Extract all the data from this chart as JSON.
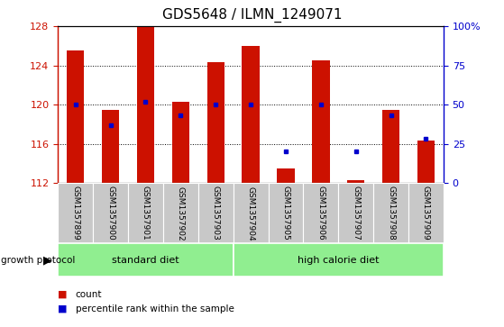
{
  "title": "GDS5648 / ILMN_1249071",
  "samples": [
    "GSM1357899",
    "GSM1357900",
    "GSM1357901",
    "GSM1357902",
    "GSM1357903",
    "GSM1357904",
    "GSM1357905",
    "GSM1357906",
    "GSM1357907",
    "GSM1357908",
    "GSM1357909"
  ],
  "counts": [
    125.5,
    119.5,
    128.0,
    120.3,
    124.3,
    126.0,
    113.5,
    124.5,
    112.3,
    119.5,
    116.3
  ],
  "percentiles": [
    50,
    37,
    52,
    43,
    50,
    50,
    20,
    50,
    20,
    43,
    28
  ],
  "ymin": 112,
  "ymax": 128,
  "yticks": [
    112,
    116,
    120,
    124,
    128
  ],
  "right_yticks": [
    0,
    25,
    50,
    75,
    100
  ],
  "right_ylabels": [
    "0",
    "25",
    "50",
    "75",
    "100%"
  ],
  "bar_color": "#CC1100",
  "dot_color": "#0000CC",
  "background_color": "#FFFFFF",
  "tick_area_color": "#C8C8C8",
  "green_color": "#90EE90",
  "growth_protocol_label": "growth protocol",
  "legend_items": [
    "count",
    "percentile rank within the sample"
  ],
  "title_fontsize": 11
}
